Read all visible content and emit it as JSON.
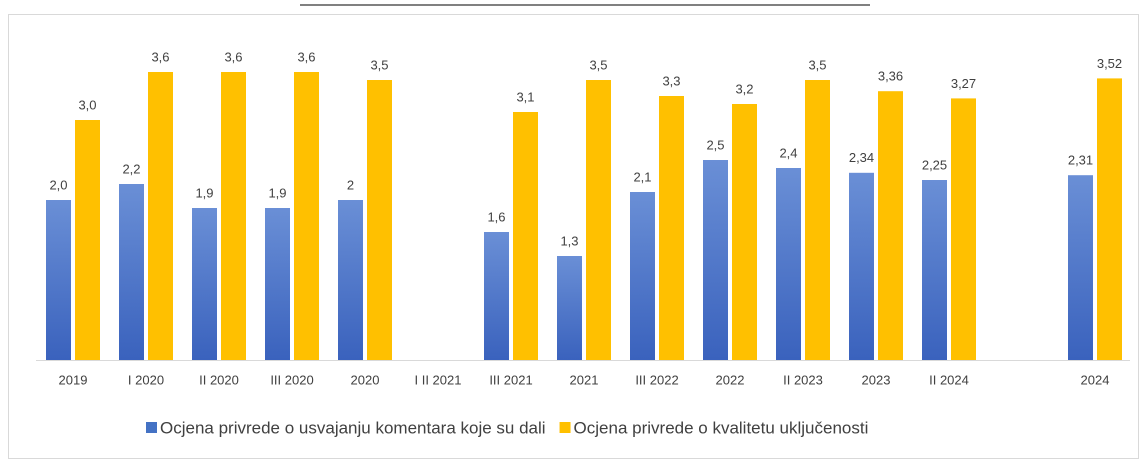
{
  "chart_data": {
    "type": "bar",
    "categories": [
      "2019",
      "I 2020",
      "II 2020",
      "III 2020",
      "2020",
      "I II 2021",
      "III 2021",
      "2021",
      "III 2022",
      "2022",
      "II 2023",
      "2023",
      "II 2024",
      null,
      "2024"
    ],
    "series": [
      {
        "name": "Ocjena privrede o usvajanju komentara koje su dali",
        "color": "#4472c4",
        "values": [
          2.0,
          2.2,
          1.9,
          1.9,
          2,
          null,
          1.6,
          1.3,
          2.1,
          2.5,
          2.4,
          2.34,
          2.25,
          null,
          2.31
        ],
        "value_labels": [
          "2,0",
          "2,2",
          "1,9",
          "1,9",
          "2",
          null,
          "1,6",
          "1,3",
          "2,1",
          "2,5",
          "2,4",
          "2,34",
          "2,25",
          null,
          "2,31"
        ]
      },
      {
        "name": "Ocjena privrede o kvalitetu uključenosti",
        "color": "#ffc000",
        "values": [
          3.0,
          3.6,
          3.6,
          3.6,
          3.5,
          null,
          3.1,
          3.5,
          3.3,
          3.2,
          3.5,
          3.36,
          3.27,
          null,
          3.52
        ],
        "value_labels": [
          "3,0",
          "3,6",
          "3,6",
          "3,6",
          "3,5",
          null,
          "3,1",
          "3,5",
          "3,3",
          "3,2",
          "3,5",
          "3,36",
          "3,27",
          null,
          "3,52"
        ]
      }
    ],
    "ylim": [
      0,
      4.5
    ],
    "legend": "bottom"
  }
}
